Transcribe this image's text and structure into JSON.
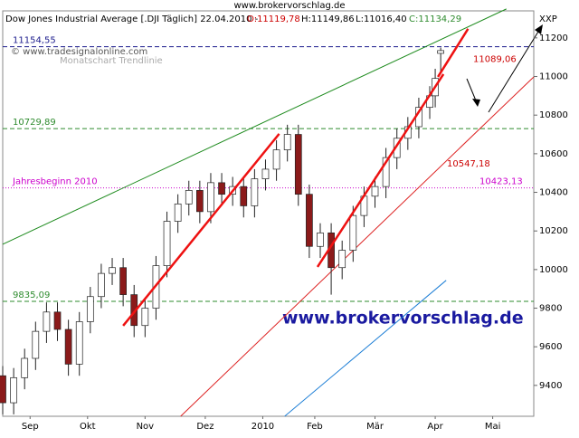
{
  "chart_data": {
    "type": "candlestick",
    "site": "www.brokervorschlag.de",
    "header": {
      "title": "Dow Jones Industrial Average [.DJI  Täglich] 22.04.2010 -",
      "open": "O:11119,78",
      "high": "H:11149,86",
      "low": "L:11016,40",
      "close": "C:11134,29"
    },
    "symbol": "XXP",
    "copyright": "© www.tradesignalonline.com",
    "watermark": "www.brokervorschlag.de",
    "trend_note": "Monatschart Trendlinie",
    "xlim": [
      0,
      194
    ],
    "xticks": [
      {
        "value": 10,
        "label": "Sep"
      },
      {
        "value": 31,
        "label": "Okt"
      },
      {
        "value": 52,
        "label": "Nov"
      },
      {
        "value": 74,
        "label": "Dez"
      },
      {
        "value": 95,
        "label": "2010"
      },
      {
        "value": 114,
        "label": "Feb"
      },
      {
        "value": 136,
        "label": "Mär"
      },
      {
        "value": 158,
        "label": "Apr"
      },
      {
        "value": 179,
        "label": "Mai"
      }
    ],
    "ylim": [
      9240,
      11340
    ],
    "yticks": [
      9400,
      9600,
      9800,
      10000,
      10200,
      10400,
      10600,
      10800,
      11000,
      11200
    ],
    "up_color": "#ffffff",
    "down_color": "#8b1a1a",
    "x": [
      0,
      4,
      8,
      12,
      16,
      20,
      24,
      28,
      32,
      36,
      40,
      44,
      48,
      52,
      56,
      60,
      64,
      68,
      72,
      76,
      80,
      84,
      88,
      92,
      96,
      100,
      104,
      108,
      112,
      116,
      120,
      124,
      128,
      132,
      136,
      140,
      144,
      148,
      152,
      156,
      158,
      160
    ],
    "open": [
      9450,
      9310,
      9440,
      9540,
      9680,
      9780,
      9690,
      9510,
      9730,
      9860,
      9980,
      10010,
      9870,
      9710,
      9800,
      10020,
      10250,
      10340,
      10410,
      10300,
      10450,
      10390,
      10430,
      10330,
      10470,
      10520,
      10620,
      10700,
      10390,
      10120,
      10190,
      10010,
      10100,
      10280,
      10380,
      10430,
      10580,
      10680,
      10740,
      10840,
      10900,
      11119.78
    ],
    "high": [
      9500,
      9490,
      9590,
      9730,
      9830,
      9830,
      9740,
      9780,
      9910,
      10030,
      10060,
      10060,
      9920,
      9850,
      10070,
      10300,
      10390,
      10460,
      10460,
      10500,
      10500,
      10480,
      10480,
      10520,
      10570,
      10670,
      10750,
      10750,
      10440,
      10240,
      10240,
      10150,
      10330,
      10430,
      10480,
      10630,
      10730,
      10790,
      10890,
      10950,
      11040,
      11149.86
    ],
    "low": [
      9250,
      9250,
      9380,
      9480,
      9620,
      9630,
      9450,
      9450,
      9670,
      9800,
      9920,
      9810,
      9650,
      9650,
      9740,
      9960,
      10190,
      10280,
      10240,
      10240,
      10330,
      10330,
      10270,
      10270,
      10410,
      10460,
      10560,
      10330,
      10060,
      10060,
      9870,
      9950,
      10040,
      10220,
      10320,
      10370,
      10520,
      10620,
      10680,
      10780,
      10840,
      11016.4
    ],
    "close": [
      9310,
      9440,
      9540,
      9680,
      9780,
      9690,
      9510,
      9730,
      9860,
      9980,
      10010,
      9870,
      9710,
      9800,
      10020,
      10250,
      10340,
      10410,
      10300,
      10450,
      10390,
      10430,
      10330,
      10470,
      10520,
      10620,
      10700,
      10390,
      10120,
      10190,
      10010,
      10100,
      10280,
      10380,
      10430,
      10580,
      10680,
      10740,
      10840,
      10900,
      10990,
      11134.29
    ],
    "levels": [
      {
        "label": "11154,55",
        "value": 11154.55,
        "color": "#1a1a8c"
      },
      {
        "label": "10729,89",
        "value": 10729.89,
        "color": "#2e8b2e"
      },
      {
        "label": "9835,09",
        "value": 9835.09,
        "color": "#2e8b2e"
      },
      {
        "label": "Jahresbeginn 2010",
        "value": 10423.13,
        "value_label": "10423,13",
        "color": "#cc00cc"
      }
    ],
    "annotations": [
      {
        "text": "11089,06",
        "value": 11089.06,
        "color": "#cc0000"
      },
      {
        "text": "10547,18",
        "value": 10547.18,
        "color": "#cc0000"
      }
    ],
    "trendlines": [
      {
        "color": "#1e8b1e",
        "width": 1,
        "x": [
          0,
          184
        ],
        "values": [
          10131,
          11350
        ]
      },
      {
        "color": "#dd2222",
        "width": 1,
        "x": [
          65,
          194
        ],
        "values": [
          9240,
          10998
        ]
      },
      {
        "color": "#1e7fd6",
        "width": 1,
        "x": [
          103,
          162
        ],
        "values": [
          9240,
          9944
        ]
      },
      {
        "color": "#ee1111",
        "width": 2.5,
        "x": [
          44,
          101
        ],
        "values": [
          9709,
          10703
        ]
      },
      {
        "color": "#ee1111",
        "width": 2.5,
        "x": [
          115,
          161
        ],
        "values": [
          10014,
          11012
        ]
      },
      {
        "color": "#ee1111",
        "width": 2.5,
        "x": [
          159,
          170
        ],
        "values": [
          10998,
          11247
        ]
      }
    ]
  }
}
